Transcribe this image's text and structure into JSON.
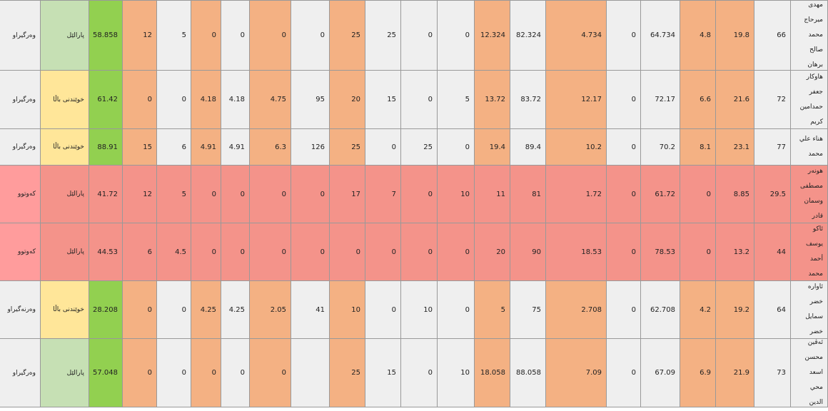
{
  "table": {
    "rows": [
      [
        "وەرگیراو",
        "پارالێل",
        58.858,
        12,
        5,
        0,
        0,
        0,
        0,
        25,
        25,
        0,
        0,
        12.324,
        82.324,
        4.734,
        0,
        64.734,
        4.8,
        19.8,
        66,
        "مهدی میرحاج محمد صالح برهان"
      ],
      [
        "وەرگیراو",
        "خوێندنی باڵا",
        61.42,
        0,
        0,
        4.18,
        4.18,
        4.75,
        95,
        20,
        15,
        0,
        5,
        13.72,
        83.72,
        12.17,
        0,
        72.17,
        6.6,
        21.6,
        72,
        "هاوکار جعفر حمدامین کریم"
      ],
      [
        "وەرگیراو",
        "خوێندنی باڵا",
        88.91,
        15,
        6,
        4.91,
        4.91,
        6.3,
        126,
        25,
        0,
        25,
        0,
        19.4,
        89.4,
        10.2,
        0,
        70.2,
        8.1,
        23.1,
        77,
        "هناء علي محمد"
      ],
      [
        "کەوتوو",
        "پارالێل",
        41.72,
        12,
        5,
        0,
        0,
        0,
        0,
        17,
        7,
        0,
        10,
        11,
        81,
        1.72,
        0,
        61.72,
        0,
        8.85,
        29.5,
        "هونەر مصطفى وسمان قادر"
      ],
      [
        "کەوتوو",
        "پارالێل",
        44.53,
        6,
        4.5,
        0,
        0,
        0,
        0,
        0,
        0,
        0,
        0,
        20,
        90,
        18.53,
        0,
        78.53,
        0,
        13.2,
        44,
        "ئاکو یوسف أحمد محمد"
      ],
      [
        "وەرنەگیراو",
        "خوێندنی باڵا",
        28.208,
        0,
        0,
        4.25,
        4.25,
        2.05,
        41,
        10,
        0,
        10,
        0,
        5,
        75,
        2.708,
        0,
        62.708,
        4.2,
        19.2,
        64,
        "ئاوارە خضر سمایل خضر"
      ],
      [
        "وەرگیراو",
        "پارالێل",
        57.048,
        0,
        0,
        0,
        0,
        0,
        null,
        25,
        15,
        0,
        10,
        18.058,
        88.058,
        7.09,
        0,
        67.09,
        6.9,
        21.9,
        73,
        "ئەڤین محسن اسعد محي الدين"
      ]
    ]
  }
}
